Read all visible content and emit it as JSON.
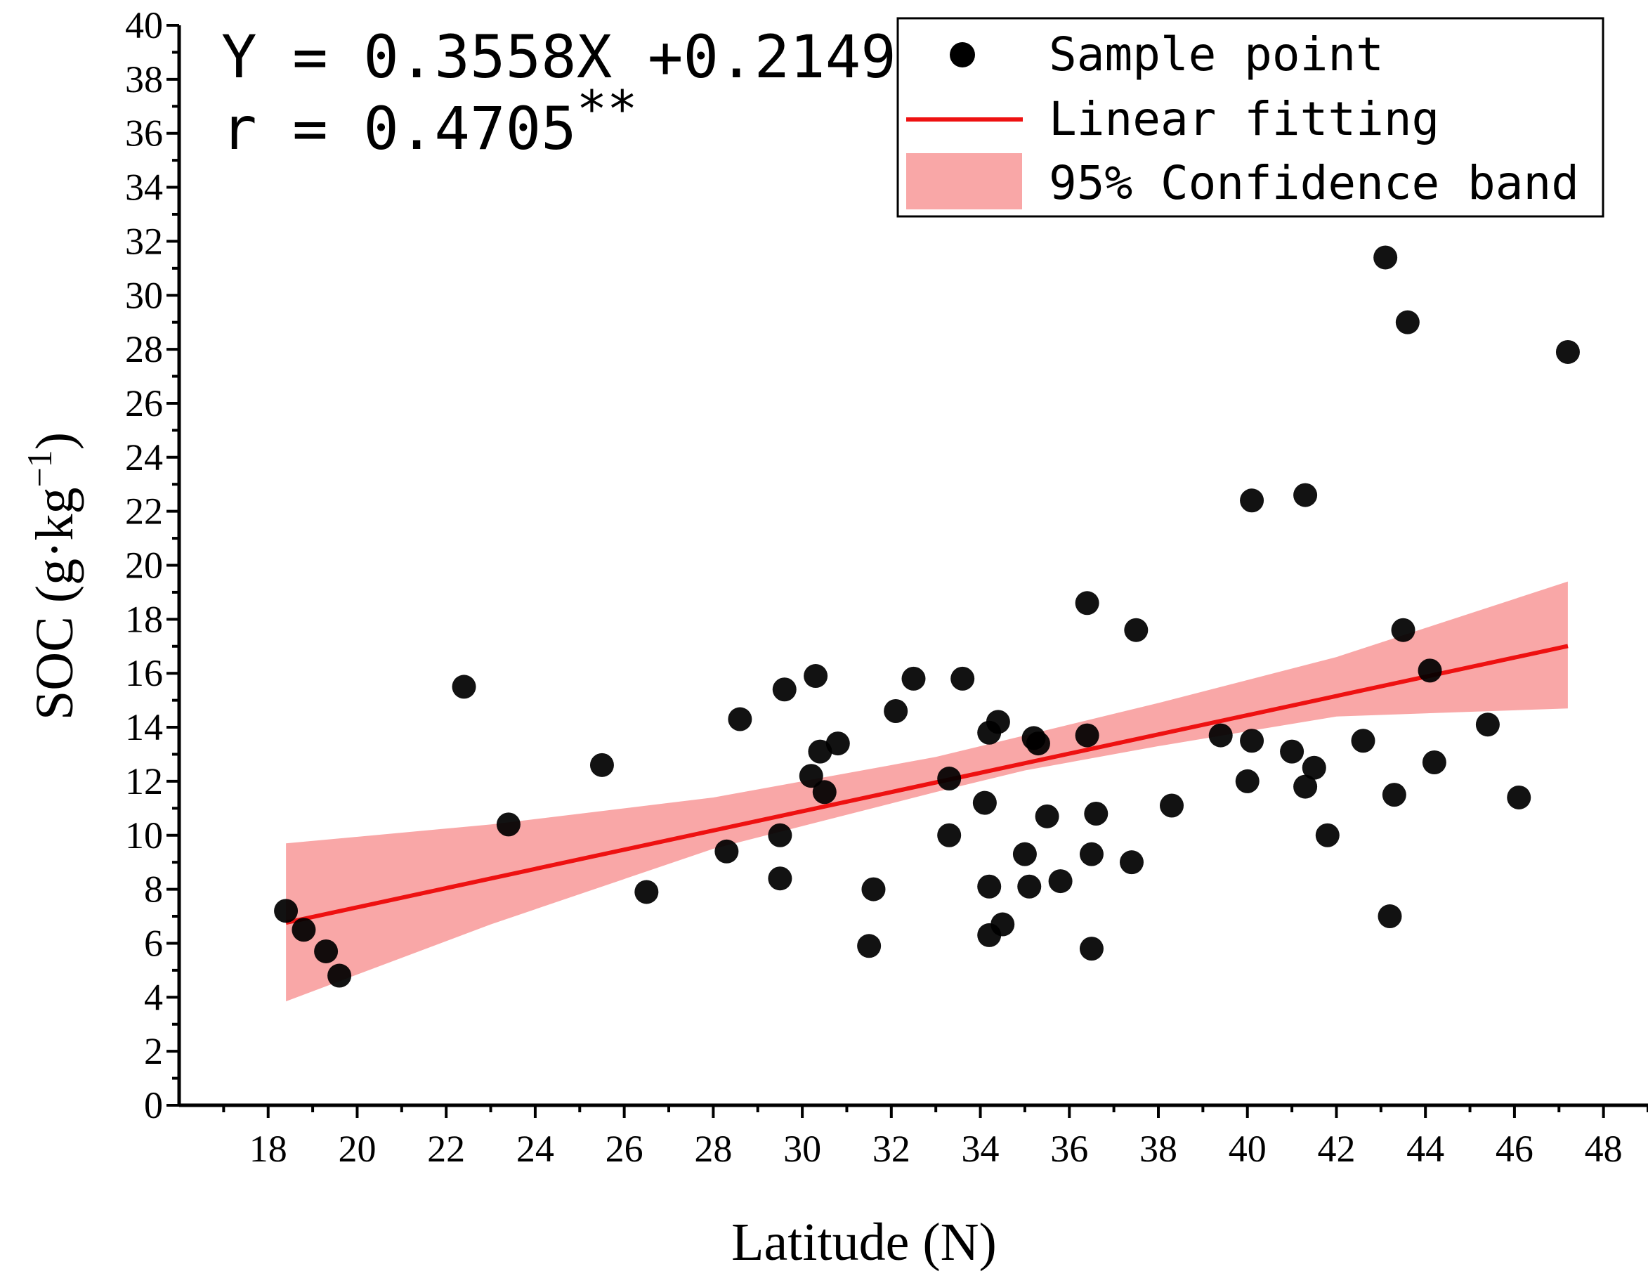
{
  "chart_data": {
    "type": "scatter",
    "title": "",
    "xlabel": "Latitude (N)",
    "ylabel_main": "SOC (g·kg",
    "ylabel_sup": "−1",
    "ylabel_close": ")",
    "xlim": [
      16,
      49
    ],
    "ylim": [
      0,
      40
    ],
    "xticks": [
      18,
      20,
      22,
      24,
      26,
      28,
      30,
      32,
      34,
      36,
      38,
      40,
      42,
      44,
      46,
      48
    ],
    "yticks": [
      0,
      2,
      4,
      6,
      8,
      10,
      12,
      14,
      16,
      18,
      20,
      22,
      24,
      26,
      28,
      30,
      32,
      34,
      36,
      38,
      40
    ],
    "equation": "Y = 0.3558X +0.2149",
    "correlation": "r = 0.4705",
    "significance": "**",
    "fit": {
      "slope": 0.3558,
      "intercept": 0.2149,
      "x_range": [
        18.4,
        47.2
      ]
    },
    "confidence_band": {
      "x": [
        18.4,
        23,
        28,
        33,
        35,
        38,
        42,
        47.2
      ],
      "upper": [
        9.7,
        10.4,
        11.4,
        12.9,
        13.7,
        14.9,
        16.6,
        19.4
      ],
      "lower": [
        3.85,
        6.7,
        9.5,
        11.6,
        12.4,
        13.3,
        14.4,
        14.7
      ]
    },
    "legend": [
      {
        "name": "Sample point",
        "type": "marker"
      },
      {
        "name": "Linear fitting",
        "type": "line"
      },
      {
        "name": "95% Confidence band",
        "type": "band"
      }
    ],
    "legend_position": "top-right",
    "points": [
      {
        "x": 18.4,
        "y": 7.2
      },
      {
        "x": 18.8,
        "y": 6.5
      },
      {
        "x": 19.3,
        "y": 5.7
      },
      {
        "x": 19.6,
        "y": 4.8
      },
      {
        "x": 22.4,
        "y": 15.5
      },
      {
        "x": 23.4,
        "y": 10.4
      },
      {
        "x": 25.5,
        "y": 12.6
      },
      {
        "x": 26.5,
        "y": 7.9
      },
      {
        "x": 28.3,
        "y": 9.4
      },
      {
        "x": 28.6,
        "y": 14.3
      },
      {
        "x": 29.5,
        "y": 10.0
      },
      {
        "x": 29.5,
        "y": 8.4
      },
      {
        "x": 29.6,
        "y": 15.4
      },
      {
        "x": 30.2,
        "y": 12.2
      },
      {
        "x": 30.3,
        "y": 15.9
      },
      {
        "x": 30.4,
        "y": 13.1
      },
      {
        "x": 30.5,
        "y": 11.6
      },
      {
        "x": 30.8,
        "y": 13.4
      },
      {
        "x": 31.5,
        "y": 5.9
      },
      {
        "x": 31.6,
        "y": 8.0
      },
      {
        "x": 32.1,
        "y": 14.6
      },
      {
        "x": 32.5,
        "y": 15.8
      },
      {
        "x": 33.3,
        "y": 12.1
      },
      {
        "x": 33.3,
        "y": 10.0
      },
      {
        "x": 33.6,
        "y": 15.8
      },
      {
        "x": 34.1,
        "y": 11.2
      },
      {
        "x": 34.2,
        "y": 13.8
      },
      {
        "x": 34.2,
        "y": 8.1
      },
      {
        "x": 34.2,
        "y": 6.3
      },
      {
        "x": 34.4,
        "y": 14.2
      },
      {
        "x": 34.5,
        "y": 6.7
      },
      {
        "x": 35.0,
        "y": 9.3
      },
      {
        "x": 35.1,
        "y": 8.1
      },
      {
        "x": 35.2,
        "y": 13.6
      },
      {
        "x": 35.3,
        "y": 13.4
      },
      {
        "x": 35.5,
        "y": 10.7
      },
      {
        "x": 35.8,
        "y": 8.3
      },
      {
        "x": 36.4,
        "y": 18.6
      },
      {
        "x": 36.4,
        "y": 13.7
      },
      {
        "x": 36.5,
        "y": 9.3
      },
      {
        "x": 36.5,
        "y": 5.8
      },
      {
        "x": 36.6,
        "y": 10.8
      },
      {
        "x": 37.4,
        "y": 9.0
      },
      {
        "x": 37.5,
        "y": 17.6
      },
      {
        "x": 38.3,
        "y": 11.1
      },
      {
        "x": 39.4,
        "y": 13.7
      },
      {
        "x": 40.0,
        "y": 12.0
      },
      {
        "x": 40.1,
        "y": 22.4
      },
      {
        "x": 40.1,
        "y": 13.5
      },
      {
        "x": 41.0,
        "y": 13.1
      },
      {
        "x": 41.3,
        "y": 22.6
      },
      {
        "x": 41.3,
        "y": 11.8
      },
      {
        "x": 41.5,
        "y": 12.5
      },
      {
        "x": 41.8,
        "y": 10.0
      },
      {
        "x": 42.6,
        "y": 13.5
      },
      {
        "x": 43.1,
        "y": 31.4
      },
      {
        "x": 43.2,
        "y": 7.0
      },
      {
        "x": 43.3,
        "y": 11.5
      },
      {
        "x": 43.5,
        "y": 17.6
      },
      {
        "x": 43.6,
        "y": 29.0
      },
      {
        "x": 44.1,
        "y": 16.1
      },
      {
        "x": 44.2,
        "y": 12.7
      },
      {
        "x": 45.4,
        "y": 14.1
      },
      {
        "x": 46.1,
        "y": 11.4
      },
      {
        "x": 47.2,
        "y": 27.9
      }
    ]
  }
}
